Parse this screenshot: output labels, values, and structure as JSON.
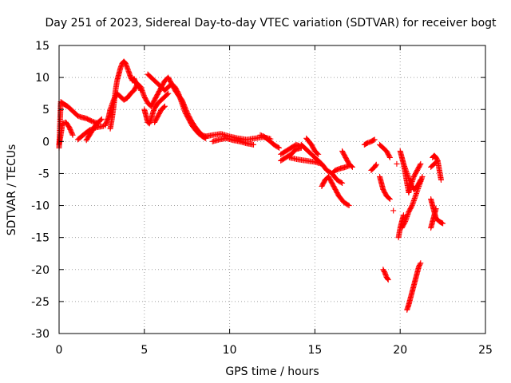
{
  "chart_data": {
    "type": "scatter",
    "title": "Day 251 of 2023, Sidereal Day-to-day VTEC variation (SDTVAR) for receiver bogt",
    "xlabel": "GPS time / hours",
    "ylabel": "SDTVAR / TECUs",
    "xlim": [
      0,
      25
    ],
    "ylim": [
      -30,
      15
    ],
    "xticks": [
      0,
      5,
      10,
      15,
      20,
      25
    ],
    "yticks": [
      -30,
      -25,
      -20,
      -15,
      -10,
      -5,
      0,
      5,
      10,
      15
    ],
    "grid": true,
    "marker": "+",
    "color": "#ff0000",
    "series": [
      {
        "name": "SDTVAR",
        "tracks": [
          [
            [
              0.0,
              -1.0
            ],
            [
              0.1,
              6.2
            ],
            [
              0.3,
              5.8
            ],
            [
              0.5,
              5.5
            ],
            [
              0.7,
              5.0
            ],
            [
              0.9,
              4.5
            ],
            [
              1.1,
              4.0
            ],
            [
              1.3,
              3.8
            ],
            [
              1.6,
              3.6
            ],
            [
              1.9,
              3.2
            ],
            [
              2.3,
              2.8
            ]
          ],
          [
            [
              0.0,
              -0.5
            ],
            [
              0.1,
              1.0
            ],
            [
              0.2,
              2.8
            ],
            [
              0.4,
              3.0
            ],
            [
              0.6,
              2.2
            ],
            [
              0.8,
              1.0
            ]
          ],
          [
            [
              1.1,
              0.3
            ],
            [
              1.5,
              1.2
            ],
            [
              1.8,
              1.8
            ],
            [
              2.2,
              2.2
            ],
            [
              2.6,
              2.4
            ]
          ],
          [
            [
              1.6,
              0.2
            ],
            [
              1.9,
              1.5
            ],
            [
              2.2,
              2.8
            ],
            [
              2.5,
              3.5
            ]
          ],
          [
            [
              2.7,
              2.5
            ],
            [
              2.9,
              3.8
            ],
            [
              3.0,
              5.0
            ],
            [
              3.2,
              6.5
            ],
            [
              3.4,
              7.5
            ],
            [
              3.6,
              7.0
            ],
            [
              3.8,
              6.5
            ],
            [
              4.0,
              6.8
            ],
            [
              4.2,
              7.5
            ],
            [
              4.4,
              8.0
            ],
            [
              4.6,
              9.0
            ],
            [
              4.8,
              8.5
            ],
            [
              5.0,
              7.0
            ],
            [
              5.2,
              6.0
            ],
            [
              5.4,
              5.5
            ],
            [
              5.6,
              6.5
            ],
            [
              5.8,
              7.5
            ],
            [
              6.0,
              8.5
            ],
            [
              6.2,
              8.0
            ],
            [
              6.4,
              8.5
            ],
            [
              6.6,
              9.0
            ],
            [
              6.8,
              8.5
            ],
            [
              7.0,
              7.5
            ],
            [
              7.2,
              6.0
            ],
            [
              7.4,
              4.5
            ],
            [
              7.6,
              3.5
            ],
            [
              7.8,
              2.5
            ],
            [
              8.0,
              1.8
            ],
            [
              8.2,
              1.2
            ],
            [
              8.4,
              0.8
            ],
            [
              8.6,
              0.5
            ]
          ],
          [
            [
              3.0,
              2.0
            ],
            [
              3.1,
              3.5
            ],
            [
              3.2,
              5.5
            ],
            [
              3.3,
              7.8
            ],
            [
              3.4,
              9.5
            ],
            [
              3.5,
              10.5
            ],
            [
              3.6,
              11.5
            ],
            [
              3.7,
              12.2
            ],
            [
              3.8,
              12.5
            ],
            [
              3.9,
              12.2
            ],
            [
              4.0,
              11.5
            ],
            [
              4.1,
              10.8
            ],
            [
              4.2,
              10.0
            ],
            [
              4.3,
              9.5
            ],
            [
              4.4,
              9.8
            ],
            [
              4.5,
              9.2
            ],
            [
              4.6,
              8.8
            ],
            [
              4.7,
              8.5
            ],
            [
              4.8,
              8.0
            ]
          ],
          [
            [
              5.0,
              5.0
            ],
            [
              5.1,
              4.0
            ],
            [
              5.2,
              3.0
            ],
            [
              5.3,
              2.8
            ],
            [
              5.4,
              3.5
            ],
            [
              5.5,
              4.5
            ],
            [
              5.6,
              5.2
            ],
            [
              5.8,
              6.0
            ],
            [
              6.0,
              6.5
            ],
            [
              6.2,
              7.0
            ],
            [
              6.4,
              7.5
            ]
          ],
          [
            [
              5.2,
              10.5
            ],
            [
              5.4,
              10.0
            ],
            [
              5.6,
              9.5
            ],
            [
              5.8,
              9.0
            ],
            [
              6.0,
              8.5
            ],
            [
              6.2,
              9.5
            ],
            [
              6.4,
              10.0
            ],
            [
              6.6,
              9.0
            ],
            [
              6.8,
              8.0
            ],
            [
              7.0,
              7.2
            ],
            [
              7.2,
              6.5
            ],
            [
              7.4,
              5.2
            ],
            [
              7.6,
              4.0
            ],
            [
              7.8,
              3.0
            ],
            [
              8.0,
              2.2
            ],
            [
              8.2,
              1.5
            ],
            [
              8.4,
              1.0
            ],
            [
              8.6,
              0.8
            ]
          ],
          [
            [
              5.6,
              3.0
            ],
            [
              5.8,
              4.0
            ],
            [
              6.0,
              5.0
            ],
            [
              6.2,
              5.5
            ]
          ],
          [
            [
              8.6,
              0.8
            ],
            [
              9.0,
              1.0
            ],
            [
              9.5,
              1.2
            ],
            [
              10.0,
              0.8
            ],
            [
              10.5,
              0.5
            ],
            [
              11.0,
              0.3
            ],
            [
              11.5,
              0.5
            ],
            [
              12.0,
              0.7
            ],
            [
              12.4,
              0.4
            ]
          ],
          [
            [
              9.0,
              0.0
            ],
            [
              9.4,
              0.3
            ],
            [
              9.8,
              0.5
            ],
            [
              10.2,
              0.2
            ],
            [
              10.6,
              0.0
            ],
            [
              11.0,
              -0.3
            ],
            [
              11.4,
              -0.5
            ]
          ],
          [
            [
              11.8,
              1.0
            ],
            [
              12.0,
              0.8
            ],
            [
              12.3,
              0.2
            ],
            [
              12.6,
              -0.5
            ],
            [
              12.9,
              -1.0
            ]
          ],
          [
            [
              13.0,
              -2.0
            ],
            [
              13.3,
              -1.5
            ],
            [
              13.6,
              -1.0
            ],
            [
              13.9,
              -0.5
            ],
            [
              14.2,
              -0.8
            ]
          ],
          [
            [
              13.0,
              -3.0
            ],
            [
              13.3,
              -2.5
            ],
            [
              13.6,
              -2.0
            ],
            [
              13.9,
              -1.2
            ],
            [
              14.2,
              -1.0
            ]
          ],
          [
            [
              13.5,
              -2.5
            ],
            [
              14.0,
              -2.8
            ],
            [
              14.5,
              -3.0
            ],
            [
              15.0,
              -3.2
            ],
            [
              15.4,
              -3.5
            ]
          ],
          [
            [
              14.2,
              -0.5
            ],
            [
              14.6,
              -1.5
            ],
            [
              15.0,
              -2.5
            ],
            [
              15.4,
              -3.5
            ],
            [
              15.7,
              -4.5
            ],
            [
              16.0,
              -5.0
            ],
            [
              16.3,
              -6.0
            ],
            [
              16.6,
              -6.5
            ]
          ],
          [
            [
              14.5,
              0.5
            ],
            [
              14.8,
              -0.5
            ],
            [
              15.0,
              -1.5
            ],
            [
              15.2,
              -2.0
            ]
          ],
          [
            [
              15.4,
              -7.0
            ],
            [
              15.6,
              -6.0
            ],
            [
              15.8,
              -5.5
            ],
            [
              16.0,
              -6.5
            ],
            [
              16.2,
              -7.5
            ],
            [
              16.4,
              -8.5
            ],
            [
              16.7,
              -9.5
            ],
            [
              17.0,
              -10.0
            ]
          ],
          [
            [
              16.0,
              -5.0
            ],
            [
              16.2,
              -4.5
            ],
            [
              16.5,
              -4.2
            ],
            [
              16.8,
              -4.0
            ],
            [
              17.0,
              -3.8
            ]
          ],
          [
            [
              16.6,
              -1.5
            ],
            [
              16.8,
              -2.5
            ],
            [
              17.0,
              -3.5
            ],
            [
              17.2,
              -4.0
            ]
          ],
          [
            [
              17.9,
              -0.5
            ],
            [
              18.1,
              -0.2
            ],
            [
              18.3,
              0.0
            ],
            [
              18.5,
              0.3
            ]
          ],
          [
            [
              18.3,
              -4.5
            ],
            [
              18.5,
              -4.0
            ],
            [
              18.6,
              -3.6
            ]
          ],
          [
            [
              18.8,
              -5.5
            ],
            [
              18.9,
              -6.5
            ],
            [
              19.0,
              -7.5
            ],
            [
              19.2,
              -8.5
            ],
            [
              19.4,
              -9.0
            ]
          ],
          [
            [
              18.8,
              -0.5
            ],
            [
              19.0,
              -1.0
            ],
            [
              19.2,
              -1.5
            ],
            [
              19.4,
              -2.5
            ]
          ],
          [
            [
              19.0,
              -20.0
            ],
            [
              19.1,
              -20.5
            ],
            [
              19.2,
              -21.2
            ],
            [
              19.3,
              -21.6
            ]
          ],
          [
            [
              19.6,
              -10.8
            ]
          ],
          [
            [
              19.8,
              -3.5
            ]
          ],
          [
            [
              19.9,
              -15.0
            ],
            [
              20.0,
              -13.5
            ],
            [
              20.1,
              -12.5
            ],
            [
              20.2,
              -11.5
            ]
          ],
          [
            [
              20.0,
              -1.5
            ],
            [
              20.1,
              -2.5
            ],
            [
              20.2,
              -3.5
            ],
            [
              20.4,
              -5.0
            ],
            [
              20.6,
              -6.5
            ],
            [
              20.8,
              -7.5
            ],
            [
              21.0,
              -7.0
            ],
            [
              21.2,
              -6.0
            ]
          ],
          [
            [
              20.2,
              -3.5
            ],
            [
              20.3,
              -5.0
            ],
            [
              20.4,
              -6.5
            ],
            [
              20.5,
              -8.0
            ],
            [
              20.6,
              -7.0
            ],
            [
              20.8,
              -5.5
            ],
            [
              21.0,
              -4.5
            ],
            [
              21.2,
              -3.5
            ]
          ],
          [
            [
              20.1,
              -13.5
            ],
            [
              20.3,
              -12.5
            ],
            [
              20.5,
              -11.0
            ],
            [
              20.7,
              -10.0
            ],
            [
              20.9,
              -8.5
            ],
            [
              21.1,
              -7.0
            ],
            [
              21.3,
              -5.5
            ]
          ],
          [
            [
              20.4,
              -26.3
            ],
            [
              20.5,
              -25.5
            ],
            [
              20.6,
              -24.5
            ],
            [
              20.7,
              -23.5
            ],
            [
              20.8,
              -22.5
            ],
            [
              20.9,
              -21.5
            ],
            [
              21.0,
              -20.5
            ],
            [
              21.1,
              -19.5
            ],
            [
              21.2,
              -19.0
            ]
          ],
          [
            [
              21.9,
              -2.5
            ],
            [
              22.0,
              -2.2
            ],
            [
              22.1,
              -2.5
            ],
            [
              22.2,
              -3.0
            ],
            [
              22.3,
              -4.5
            ],
            [
              22.4,
              -6.0
            ]
          ],
          [
            [
              21.8,
              -4.0
            ],
            [
              22.0,
              -3.5
            ],
            [
              22.2,
              -3.0
            ]
          ],
          [
            [
              21.8,
              -9.0
            ],
            [
              21.9,
              -10.0
            ],
            [
              22.0,
              -11.0
            ],
            [
              22.1,
              -12.0
            ],
            [
              22.3,
              -12.5
            ],
            [
              22.5,
              -12.8
            ]
          ],
          [
            [
              21.8,
              -13.5
            ],
            [
              21.9,
              -12.5
            ],
            [
              22.0,
              -11.5
            ],
            [
              22.1,
              -10.5
            ]
          ]
        ]
      }
    ]
  }
}
